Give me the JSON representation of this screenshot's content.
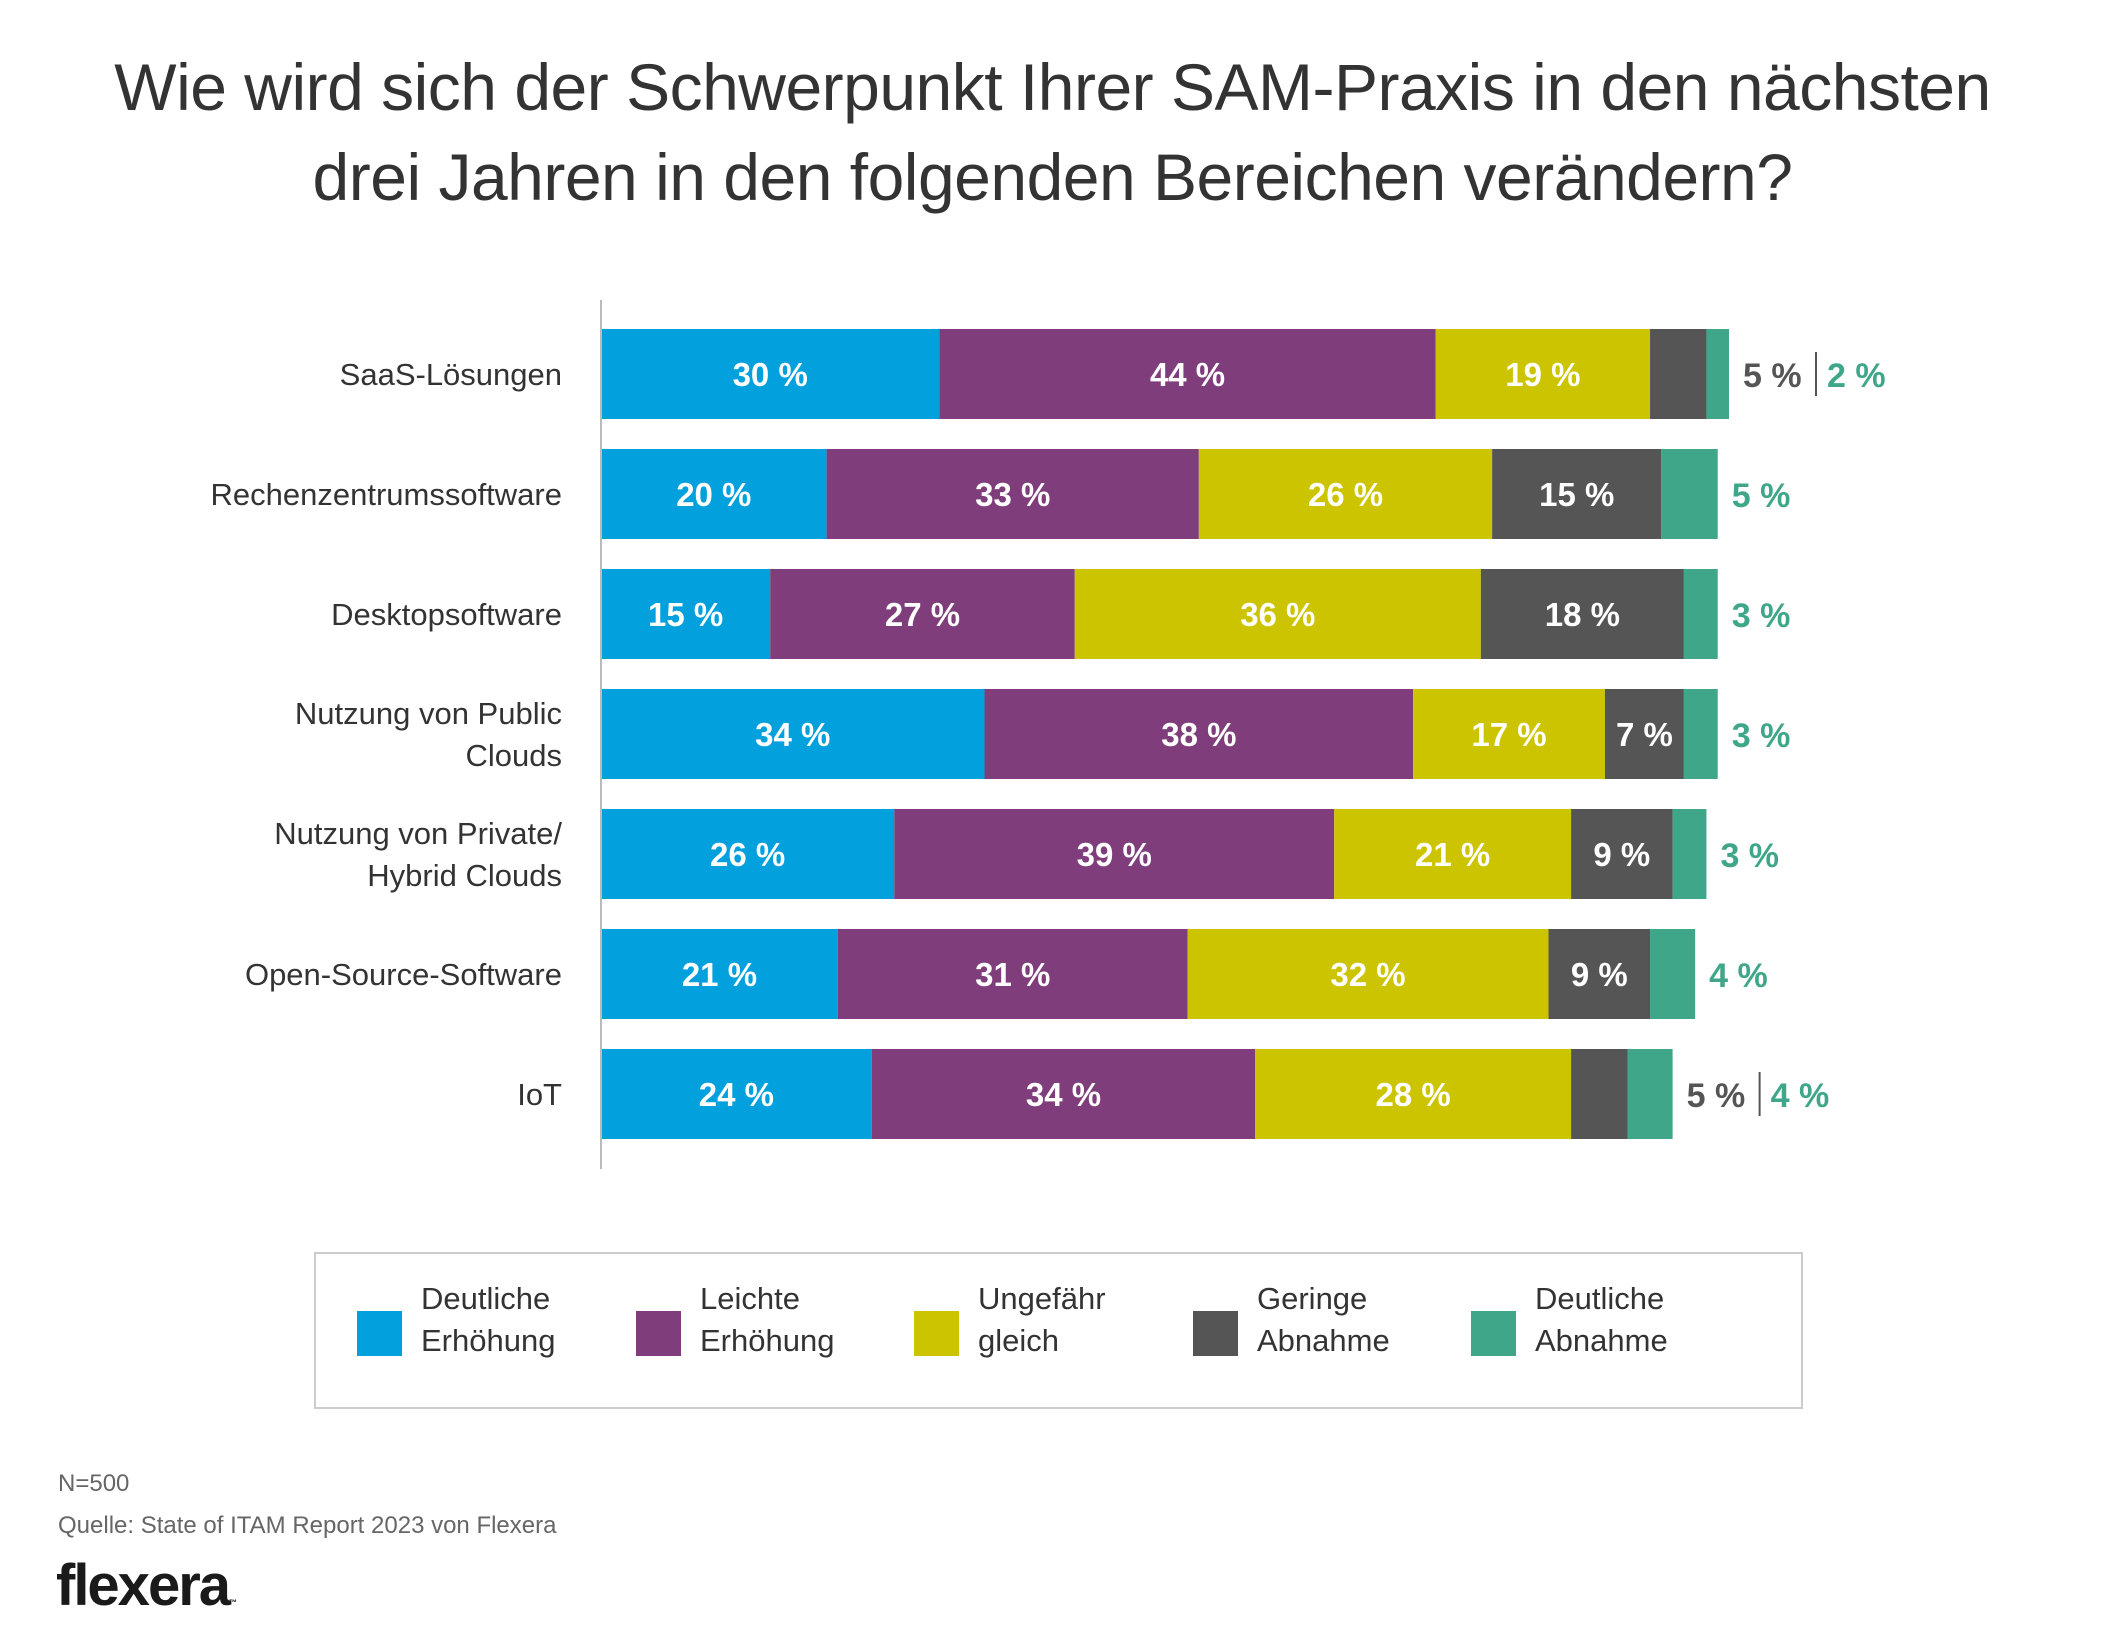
{
  "title": {
    "line1": "Wie wird sich der Schwerpunkt Ihrer SAM-Praxis in den nächsten",
    "line2": "drei Jahren in den folgenden Bereichen verändern?"
  },
  "colors": {
    "deutliche_erhoehung": "#02a0dd",
    "leichte_erhoehung": "#7f3e7b",
    "ungefaehr_gleich": "#cdc400",
    "geringe_abnahme": "#555555",
    "deutliche_abnahme": "#3fa68a",
    "axis": "#bbbbbb",
    "outside_gray_text": "#555555",
    "outside_green_text": "#3fa68a"
  },
  "chart_data": {
    "type": "bar",
    "orientation": "horizontal",
    "stacked": true,
    "title": "Wie wird sich der Schwerpunkt Ihrer SAM-Praxis in den nächsten drei Jahren in den folgenden Bereichen verändern?",
    "xlabel": "",
    "ylabel": "",
    "xlim": [
      0,
      100
    ],
    "unit": "%",
    "grid": false,
    "legend_position": "bottom",
    "categories": [
      [
        "SaaS-Lösungen"
      ],
      [
        "Rechenzentrumssoftware"
      ],
      [
        "Desktopsoftware"
      ],
      [
        "Nutzung von Public",
        "Clouds"
      ],
      [
        "Nutzung von Private/",
        "Hybrid Clouds"
      ],
      [
        "Open-Source-Software"
      ],
      [
        "IoT"
      ]
    ],
    "series": [
      {
        "name": "Deutliche Erhöhung",
        "legend_lines": [
          "Deutliche",
          "Erhöhung"
        ],
        "color_key": "deutliche_erhoehung",
        "values": [
          30,
          20,
          15,
          34,
          26,
          21,
          24
        ]
      },
      {
        "name": "Leichte Erhöhung",
        "legend_lines": [
          "Leichte",
          "Erhöhung"
        ],
        "color_key": "leichte_erhoehung",
        "values": [
          44,
          33,
          27,
          38,
          39,
          31,
          34
        ]
      },
      {
        "name": "Ungefähr gleich",
        "legend_lines": [
          "Ungefähr",
          "gleich"
        ],
        "color_key": "ungefaehr_gleich",
        "values": [
          19,
          26,
          36,
          17,
          21,
          32,
          28
        ]
      },
      {
        "name": "Geringe Abnahme",
        "legend_lines": [
          "Geringe",
          "Abnahme"
        ],
        "color_key": "geringe_abnahme",
        "values": [
          5,
          15,
          18,
          7,
          9,
          9,
          5
        ]
      },
      {
        "name": "Deutliche Abnahme",
        "legend_lines": [
          "Deutliche",
          "Abnahme"
        ],
        "color_key": "deutliche_abnahme",
        "values": [
          2,
          5,
          3,
          3,
          3,
          4,
          4
        ]
      }
    ],
    "labels_inside": [
      [
        "30 %",
        "44 %",
        "19 %",
        null,
        null
      ],
      [
        "20 %",
        "33 %",
        "26 %",
        "15 %",
        null
      ],
      [
        "15 %",
        "27 %",
        "36 %",
        "18 %",
        null
      ],
      [
        "34 %",
        "38 %",
        "17 %",
        "7 %",
        null
      ],
      [
        "26 %",
        "39 %",
        "21 %",
        "9 %",
        null
      ],
      [
        "21 %",
        "31 %",
        "32 %",
        "9 %",
        null
      ],
      [
        "24 %",
        "34 %",
        "28 %",
        null,
        null
      ]
    ],
    "labels_outside": [
      {
        "gray": "5 %",
        "separator": "|",
        "green": "2 %"
      },
      {
        "gray": null,
        "separator": null,
        "green": "5 %"
      },
      {
        "gray": null,
        "separator": null,
        "green": "3 %"
      },
      {
        "gray": null,
        "separator": null,
        "green": "3 %"
      },
      {
        "gray": null,
        "separator": null,
        "green": "3 %"
      },
      {
        "gray": null,
        "separator": null,
        "green": "4 %"
      },
      {
        "gray": "5 %",
        "separator": "|",
        "green": "4 %"
      }
    ]
  },
  "legend": {
    "items": [
      {
        "line1": "Deutliche",
        "line2": "Erhöhung",
        "color": "#02a0dd"
      },
      {
        "line1": "Leichte",
        "line2": "Erhöhung",
        "color": "#7f3e7b"
      },
      {
        "line1": "Ungefähr",
        "line2": "gleich",
        "color": "#cdc400"
      },
      {
        "line1": "Geringe",
        "line2": "Abnahme",
        "color": "#555555"
      },
      {
        "line1": "Deutliche",
        "line2": "Abnahme",
        "color": "#3fa68a"
      }
    ]
  },
  "footer": {
    "n": "N=500",
    "source": "Quelle: State of ITAM Report 2023 von Flexera",
    "logo": "flexera",
    "logo_tm": "™"
  }
}
